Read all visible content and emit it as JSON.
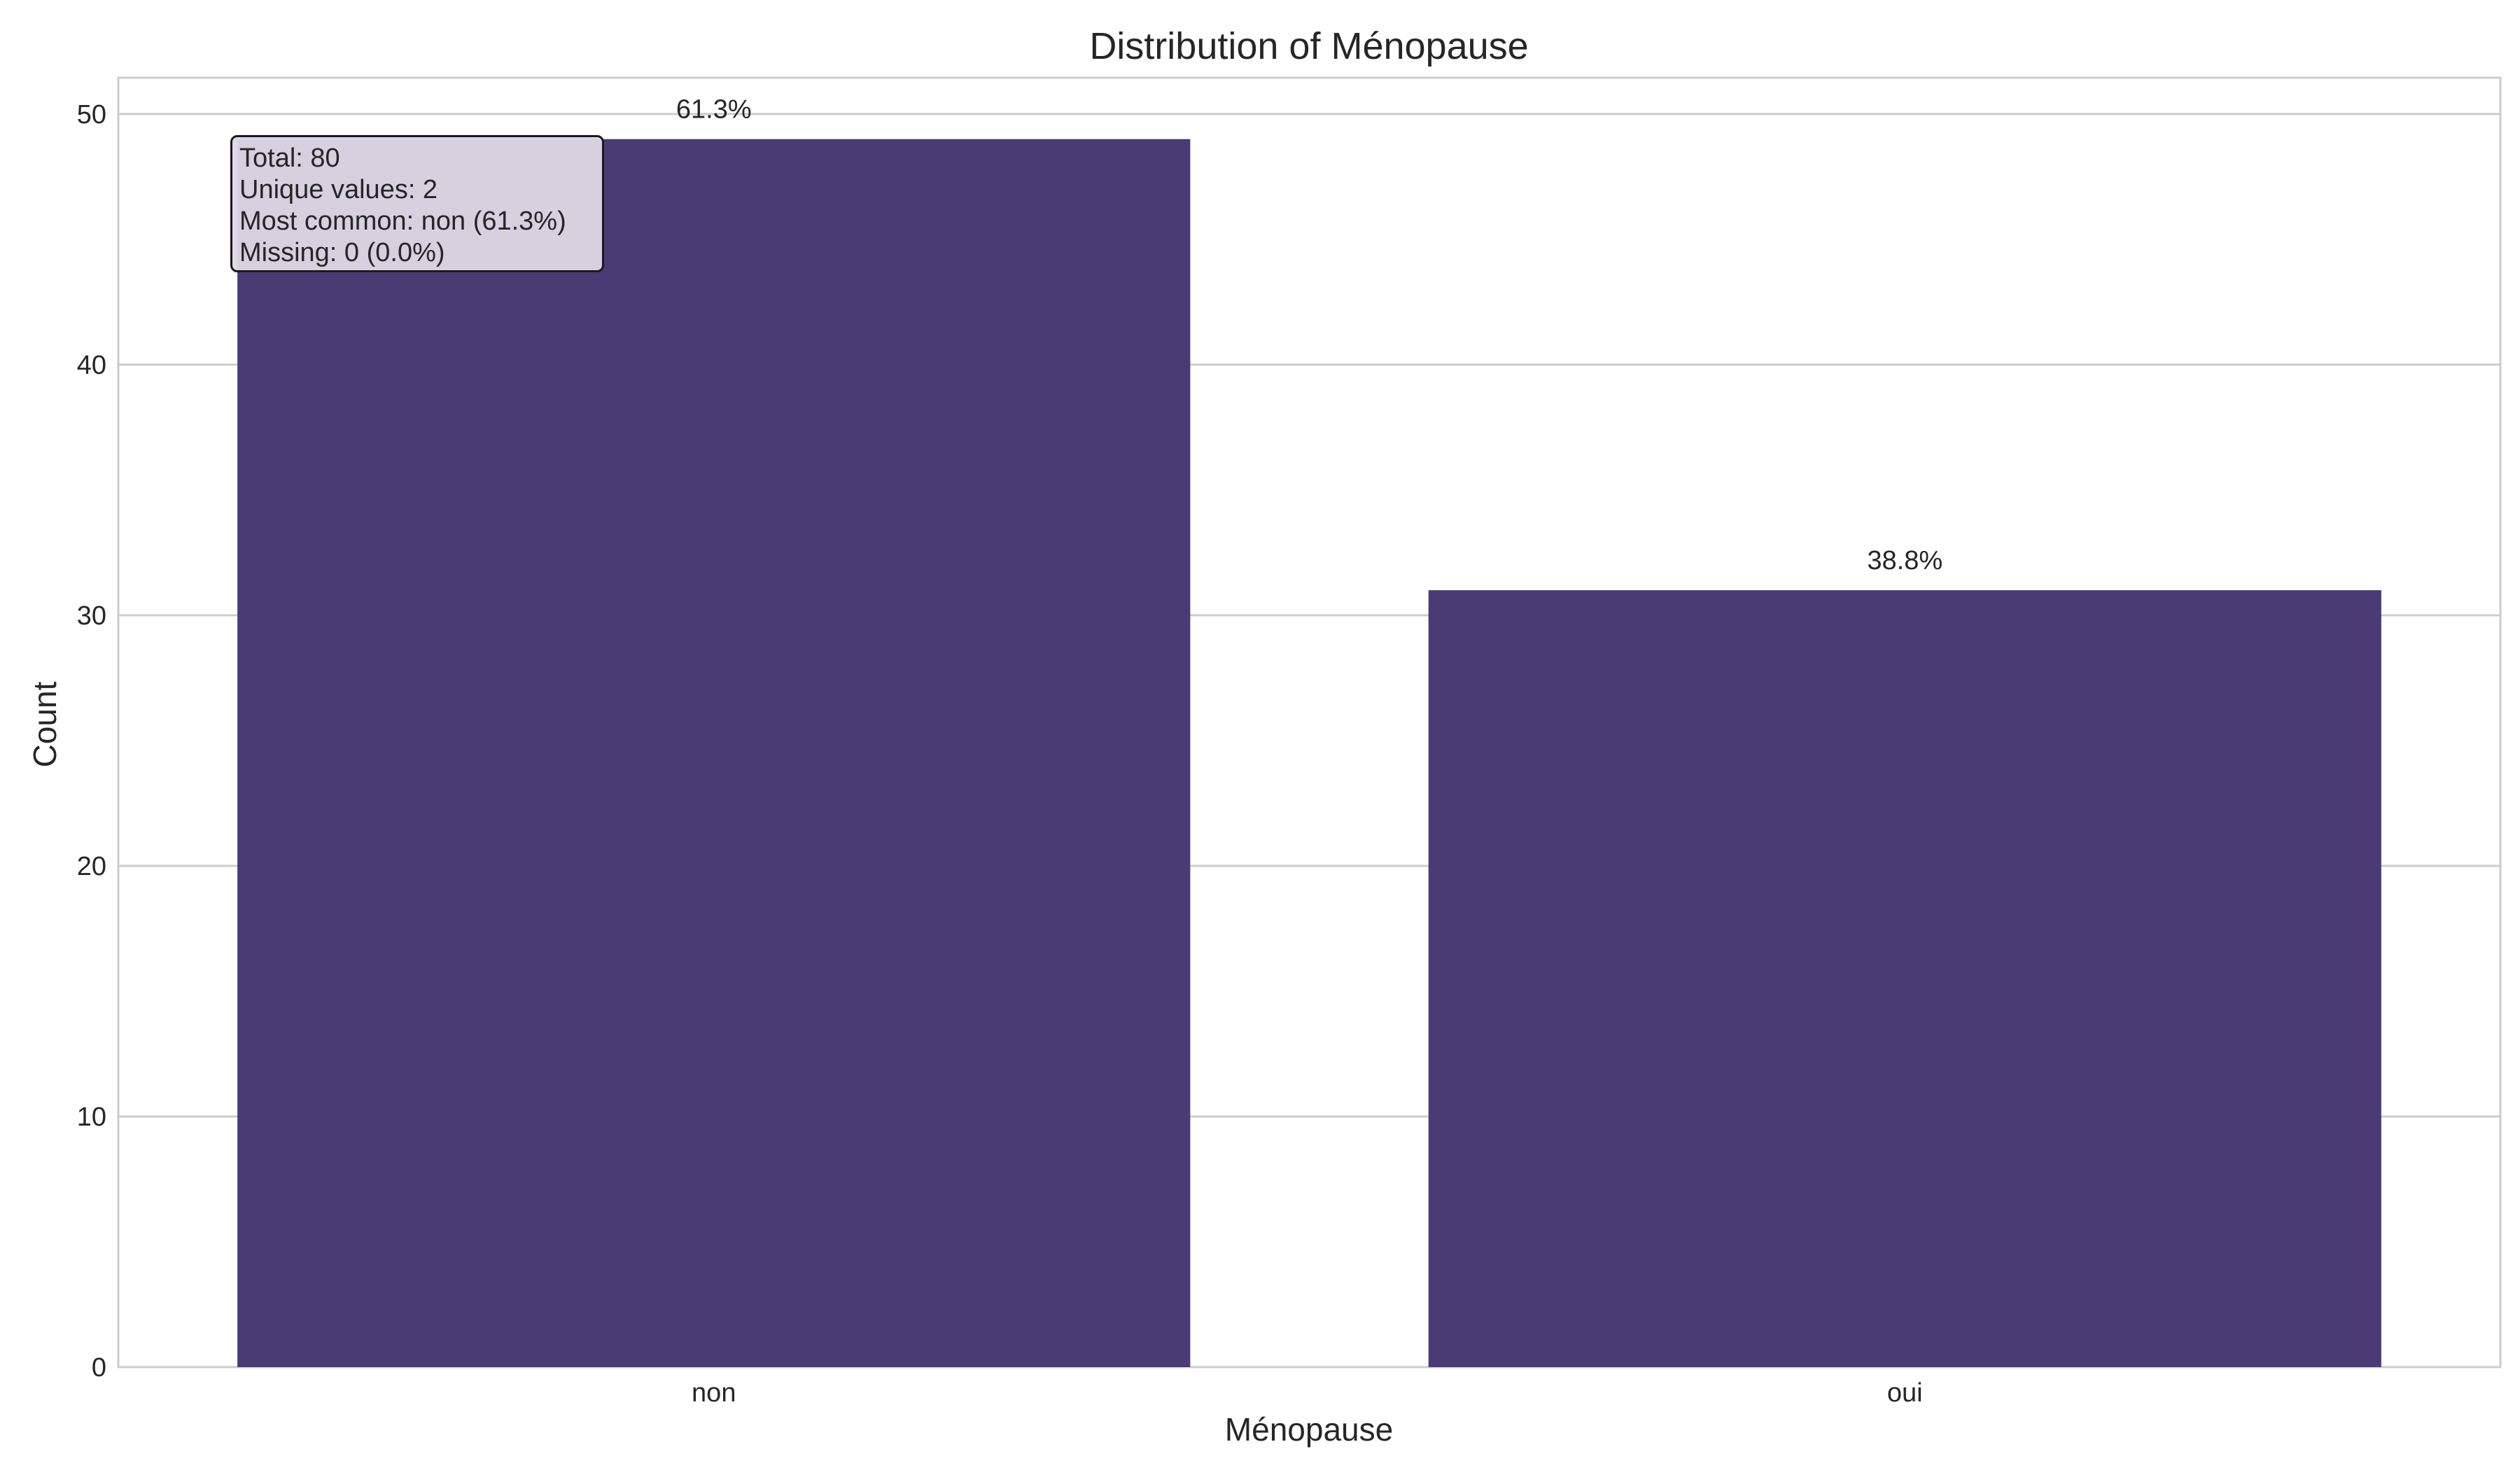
{
  "chart_data": {
    "type": "bar",
    "title": "Distribution of Ménopause",
    "xlabel": "Ménopause",
    "ylabel": "Count",
    "categories": [
      "non",
      "oui"
    ],
    "values": [
      49,
      31
    ],
    "bar_labels": [
      "61.3%",
      "38.8%"
    ],
    "ylim": [
      0,
      51.45
    ],
    "yticks": [
      0,
      10,
      20,
      30,
      40,
      50
    ],
    "grid": true,
    "bar_color": "#4a3b74",
    "stats_box": {
      "lines": [
        "Total: 80",
        "Unique values: 2",
        "Most common: non (61.3%)",
        "Missing: 0 (0.0%)"
      ]
    }
  }
}
